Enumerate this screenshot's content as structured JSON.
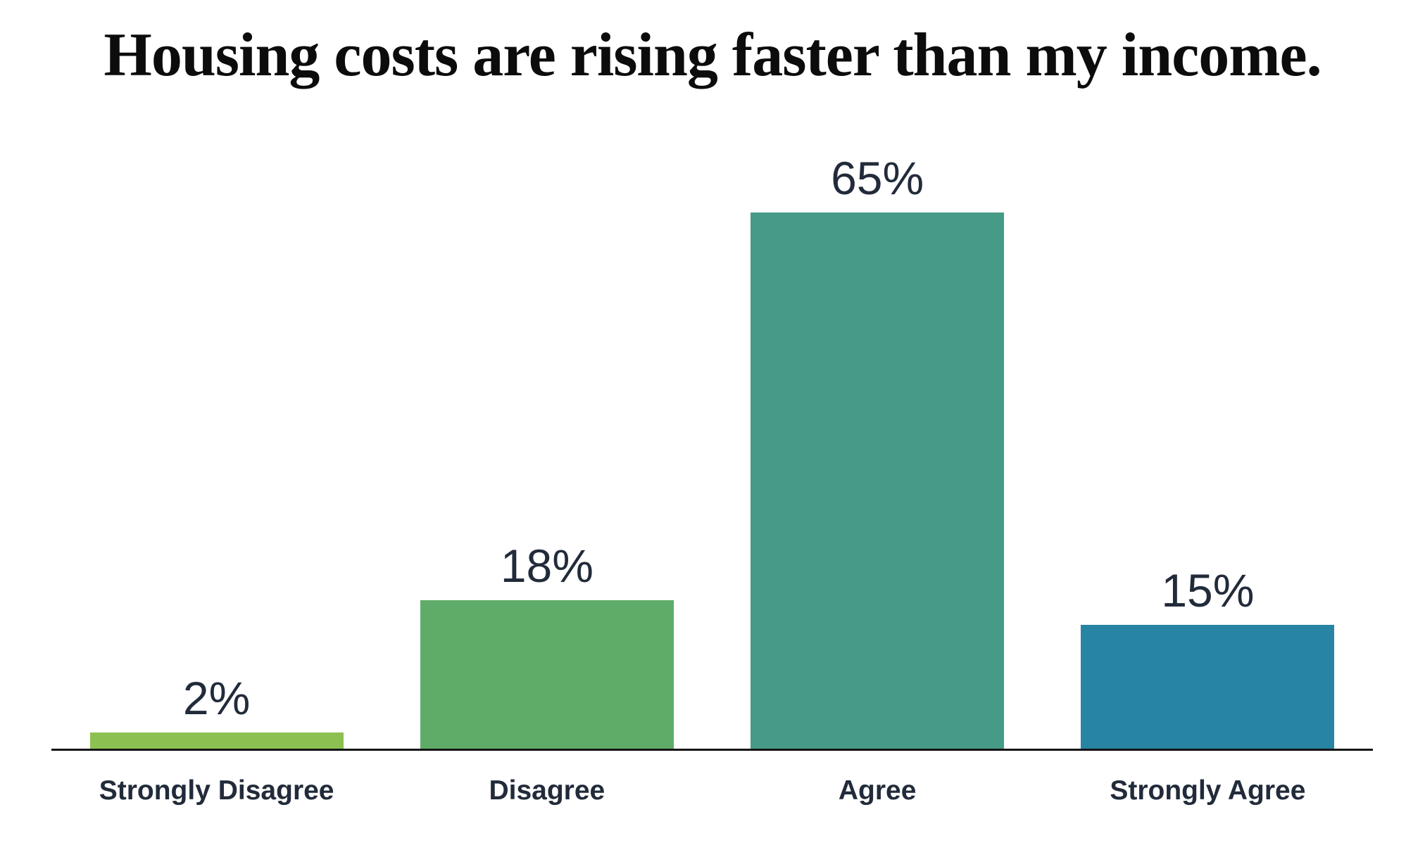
{
  "page": {
    "background_color": "#ffffff",
    "text_color": "#222b3a",
    "axis_color": "#141414"
  },
  "chart_data": {
    "type": "bar",
    "title": "Housing costs are rising faster than my income.",
    "categories": [
      "Strongly Disagree",
      "Disagree",
      "Agree",
      "Strongly Agree"
    ],
    "values": [
      2,
      18,
      65,
      15
    ],
    "value_labels": [
      "2%",
      "18%",
      "65%",
      "15%"
    ],
    "bar_colors": [
      "#8CC152",
      "#5FAC68",
      "#459B85",
      "#2884A3"
    ],
    "xlabel": "",
    "ylabel": "",
    "ylim": [
      0,
      68
    ],
    "grid": false,
    "legend": "none",
    "orientation": "vertical",
    "value_label_position": "above-bar"
  }
}
